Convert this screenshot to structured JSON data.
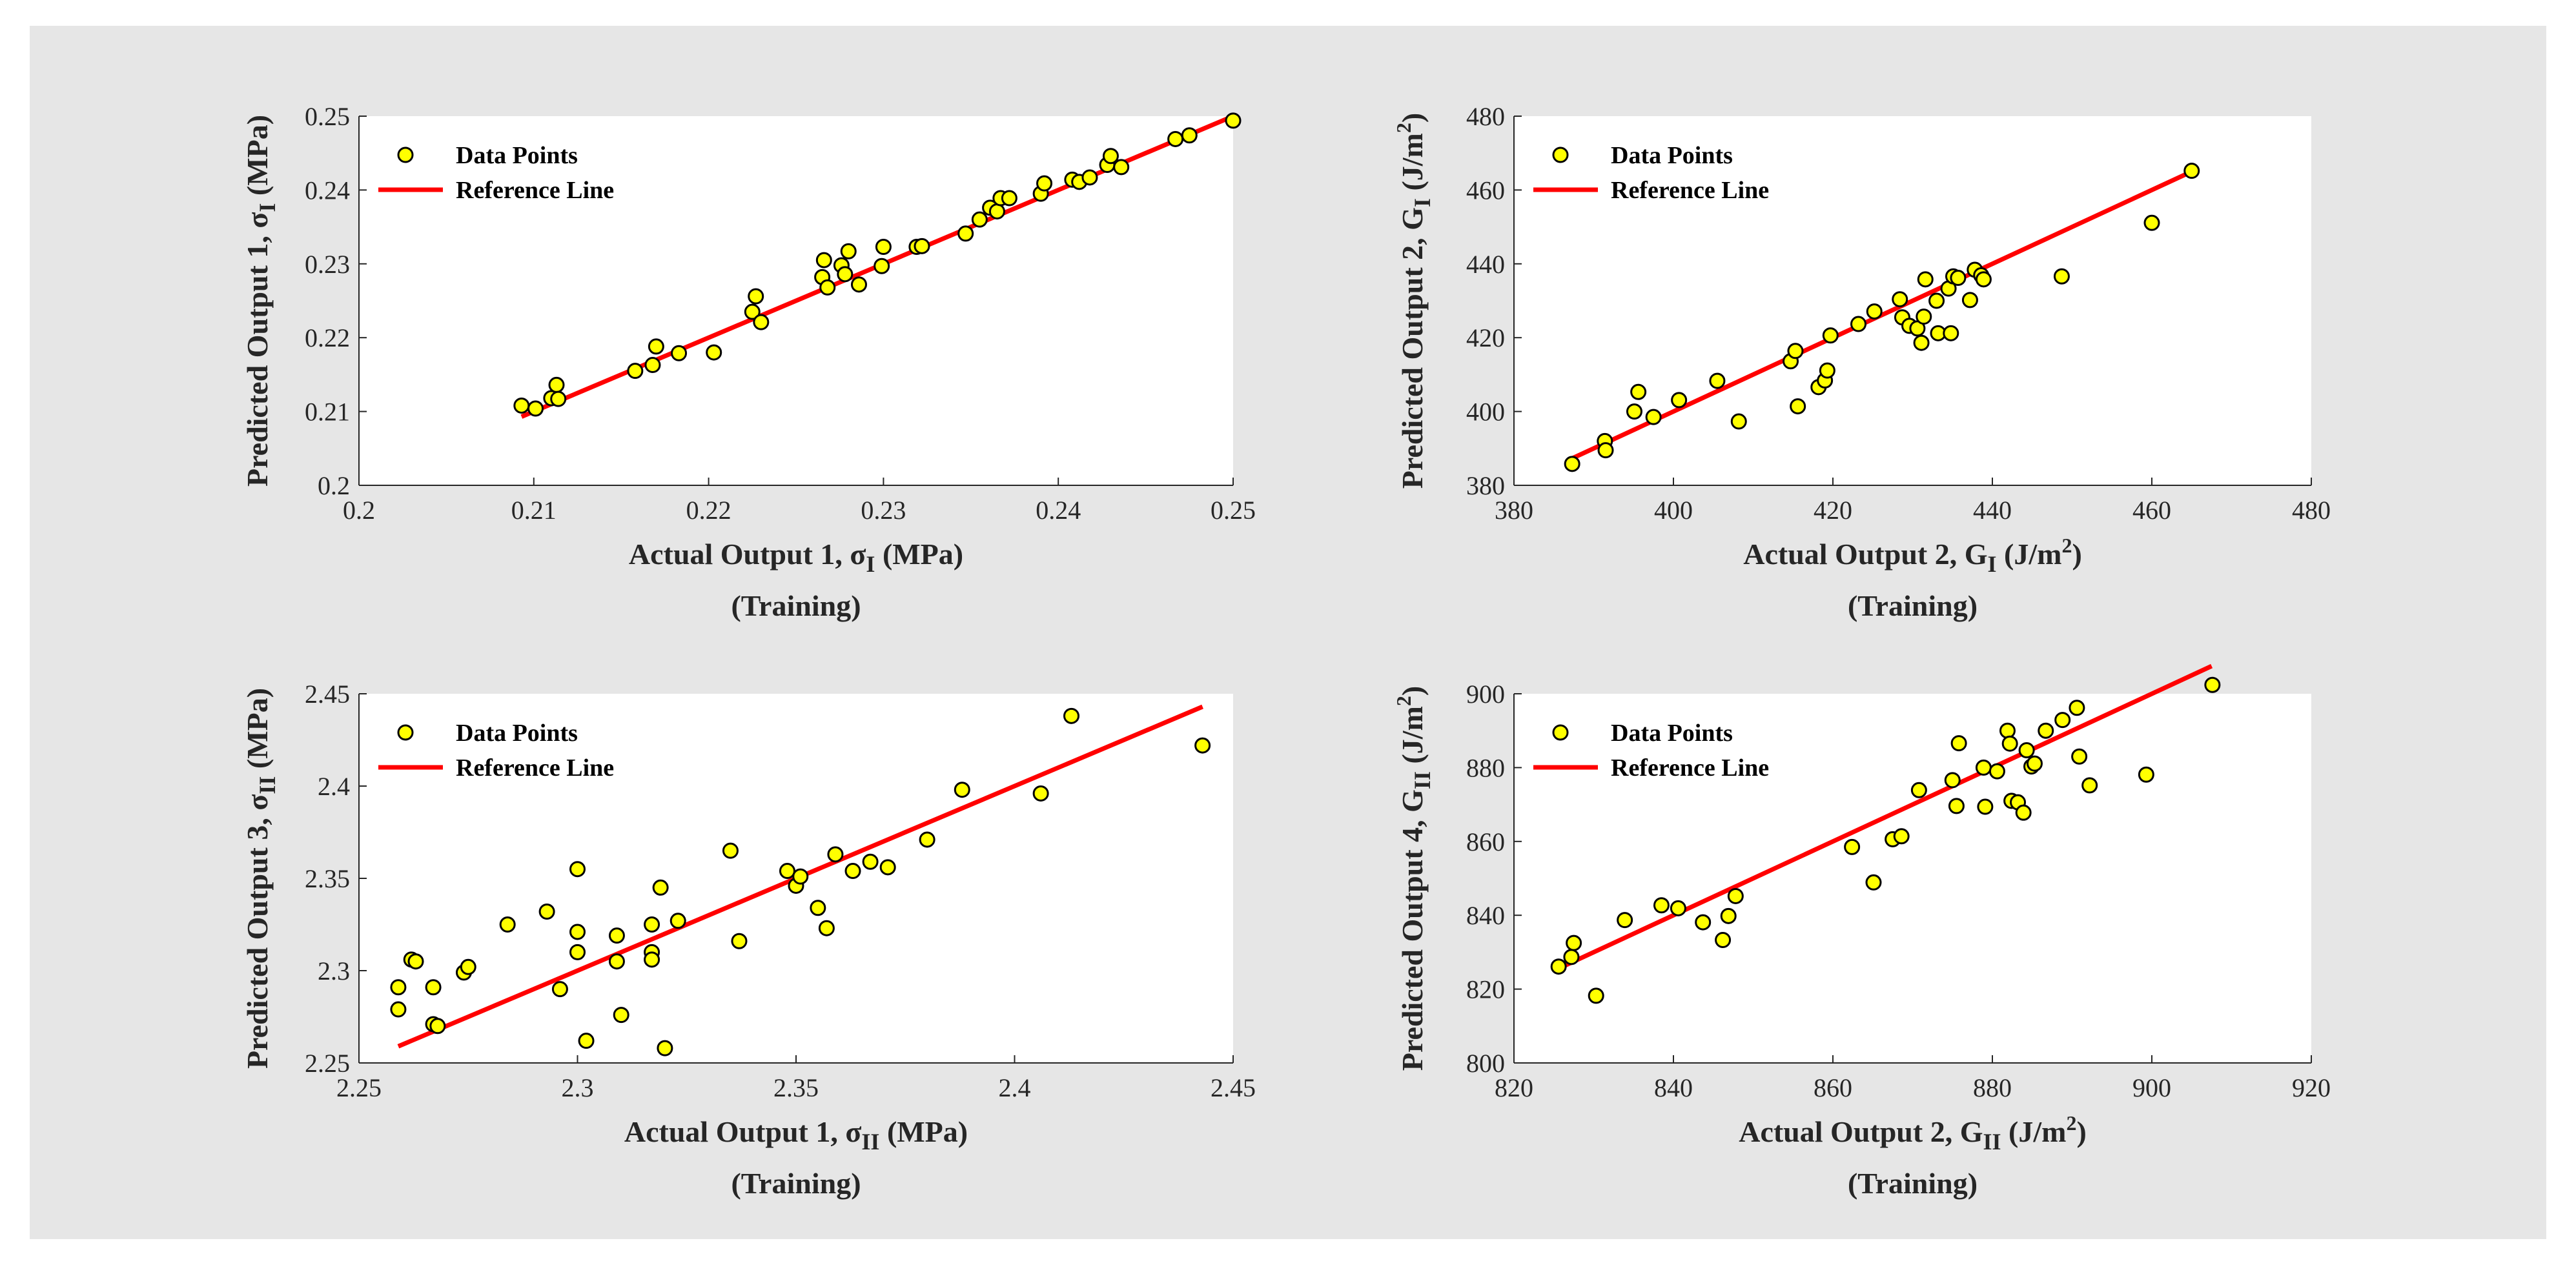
{
  "figure": {
    "background": "#e6e6e6",
    "axes_color": "#ffffff",
    "point_fill": "#ffff00",
    "point_edge": "#000000",
    "line_color": "#ff0000"
  },
  "chart_data": [
    {
      "type": "scatter",
      "xlabel": {
        "main": "Actual Output 1, σ",
        "sub": "I",
        "tail": " (MPa)"
      },
      "ylabel": {
        "main": "Predicted Output 1, σ",
        "sub": "I",
        "tail": " (MPa)"
      },
      "subtitle": "(Training)",
      "xlim": [
        0.2,
        0.25
      ],
      "ylim": [
        0.2,
        0.25
      ],
      "xticks": [
        0.2,
        0.21,
        0.22,
        0.23,
        0.24,
        0.25
      ],
      "yticks": [
        0.2,
        0.21,
        0.22,
        0.23,
        0.24,
        0.25
      ],
      "xtick_labels": [
        "0.2",
        "0.21",
        "0.22",
        "0.23",
        "0.24",
        "0.25"
      ],
      "ytick_labels": [
        "0.2",
        "0.21",
        "0.22",
        "0.23",
        "0.24",
        "0.25"
      ],
      "legend": {
        "location": "top-left",
        "points": "Data Points",
        "line": "Reference Line"
      },
      "reference_line": {
        "x": [
          0.2093,
          0.25
        ],
        "y": [
          0.2093,
          0.25
        ]
      },
      "series": {
        "name": "Data Points",
        "x": [
          0.2093,
          0.2101,
          0.211,
          0.2113,
          0.2114,
          0.2158,
          0.2168,
          0.217,
          0.2183,
          0.2203,
          0.2225,
          0.2227,
          0.223,
          0.2265,
          0.2266,
          0.2268,
          0.2276,
          0.2278,
          0.228,
          0.2286,
          0.2299,
          0.23,
          0.2319,
          0.2322,
          0.2347,
          0.2355,
          0.2361,
          0.2365,
          0.2367,
          0.2372,
          0.239,
          0.2392,
          0.2408,
          0.2412,
          0.2418,
          0.2428,
          0.243,
          0.2436,
          0.2467,
          0.2475,
          0.25
        ],
        "y": [
          0.2108,
          0.2104,
          0.2118,
          0.2136,
          0.2117,
          0.2155,
          0.2163,
          0.2188,
          0.2179,
          0.218,
          0.2235,
          0.2256,
          0.2221,
          0.2282,
          0.2305,
          0.2268,
          0.2298,
          0.2286,
          0.2317,
          0.2272,
          0.2297,
          0.2323,
          0.2323,
          0.2324,
          0.2341,
          0.236,
          0.2376,
          0.2371,
          0.2389,
          0.2389,
          0.2395,
          0.2409,
          0.2414,
          0.2411,
          0.2417,
          0.2434,
          0.2446,
          0.2431,
          0.2469,
          0.2474,
          0.2494
        ]
      }
    },
    {
      "type": "scatter",
      "xlabel": {
        "main": "Actual Output 2, G",
        "sub": "I",
        "tail": " (J/m",
        "sup": "2",
        "end": ")"
      },
      "ylabel": {
        "main": "Predicted Output 2, G",
        "sub": "I",
        "tail": " (J/m",
        "sup": "2",
        "end": ")"
      },
      "subtitle": "(Training)",
      "xlim": [
        380,
        480
      ],
      "ylim": [
        380,
        480
      ],
      "xticks": [
        380,
        400,
        420,
        440,
        460,
        480
      ],
      "yticks": [
        380,
        400,
        420,
        440,
        460,
        480
      ],
      "xtick_labels": [
        "380",
        "400",
        "420",
        "440",
        "460",
        "480"
      ],
      "ytick_labels": [
        "380",
        "400",
        "420",
        "440",
        "460",
        "480"
      ],
      "legend": {
        "location": "top-left",
        "points": "Data Points",
        "line": "Reference Line"
      },
      "reference_line": {
        "x": [
          387,
          465
        ],
        "y": [
          387,
          465
        ]
      },
      "series": {
        "name": "Data Points",
        "x": [
          387.3,
          391.4,
          391.5,
          395.1,
          395.6,
          397.5,
          400.7,
          405.5,
          408.2,
          414.7,
          415.3,
          415.6,
          418.2,
          419.0,
          419.3,
          419.7,
          423.2,
          425.2,
          428.4,
          428.7,
          429.6,
          430.6,
          431.1,
          431.4,
          431.6,
          433.0,
          433.2,
          434.5,
          434.8,
          435.1,
          435.7,
          437.2,
          437.8,
          438.6,
          438.9,
          448.7,
          460.0,
          465.0
        ],
        "y": [
          385.8,
          392.0,
          389.5,
          400.0,
          405.3,
          398.5,
          403.1,
          408.3,
          397.3,
          413.6,
          416.4,
          401.4,
          406.6,
          408.4,
          411.1,
          420.6,
          423.7,
          427.1,
          430.4,
          425.5,
          423.2,
          422.5,
          418.6,
          425.7,
          435.8,
          430.0,
          421.2,
          433.3,
          421.2,
          436.6,
          436.2,
          430.2,
          438.4,
          436.9,
          435.8,
          436.6,
          451.1,
          465.2
        ]
      }
    },
    {
      "type": "scatter",
      "xlabel": {
        "main": "Actual Output 1, σ",
        "sub": "II",
        "tail": " (MPa)"
      },
      "ylabel": {
        "main": "Predicted Output 3, σ",
        "sub": "II",
        "tail": " (MPa)"
      },
      "subtitle": "(Training)",
      "xlim": [
        2.25,
        2.45
      ],
      "ylim": [
        2.25,
        2.45
      ],
      "xticks": [
        2.25,
        2.3,
        2.35,
        2.4,
        2.45
      ],
      "yticks": [
        2.25,
        2.3,
        2.35,
        2.4,
        2.45
      ],
      "xtick_labels": [
        "2.25",
        "2.3",
        "2.35",
        "2.4",
        "2.45"
      ],
      "ytick_labels": [
        "2.25",
        "2.3",
        "2.35",
        "2.4",
        "2.45"
      ],
      "legend": {
        "location": "top-left",
        "points": "Data Points",
        "line": "Reference Line"
      },
      "reference_line": {
        "x": [
          2.259,
          2.443
        ],
        "y": [
          2.259,
          2.443
        ]
      },
      "series": {
        "name": "Data Points",
        "x": [
          2.259,
          2.259,
          2.262,
          2.263,
          2.267,
          2.267,
          2.268,
          2.274,
          2.275,
          2.284,
          2.293,
          2.296,
          2.3,
          2.3,
          2.3,
          2.302,
          2.309,
          2.309,
          2.31,
          2.317,
          2.317,
          2.317,
          2.319,
          2.32,
          2.323,
          2.335,
          2.337,
          2.348,
          2.35,
          2.351,
          2.355,
          2.357,
          2.359,
          2.363,
          2.367,
          2.371,
          2.38,
          2.388,
          2.406,
          2.413,
          2.443
        ],
        "y": [
          2.279,
          2.291,
          2.306,
          2.305,
          2.271,
          2.291,
          2.27,
          2.299,
          2.302,
          2.325,
          2.332,
          2.29,
          2.31,
          2.321,
          2.355,
          2.262,
          2.319,
          2.305,
          2.276,
          2.325,
          2.31,
          2.306,
          2.345,
          2.258,
          2.327,
          2.365,
          2.316,
          2.354,
          2.346,
          2.351,
          2.334,
          2.323,
          2.363,
          2.354,
          2.359,
          2.356,
          2.371,
          2.398,
          2.396,
          2.438,
          2.422
        ]
      }
    },
    {
      "type": "scatter",
      "xlabel": {
        "main": "Actual Output 2, G",
        "sub": "II",
        "tail": " (J/m",
        "sup": "2",
        "end": ")"
      },
      "ylabel": {
        "main": "Predicted Output 4, G",
        "sub": "II",
        "tail": " (J/m",
        "sup": "2",
        "end": ")"
      },
      "subtitle": "(Training)",
      "xlim": [
        820,
        920
      ],
      "ylim": [
        800,
        900
      ],
      "xticks": [
        820,
        840,
        860,
        880,
        900,
        920
      ],
      "yticks": [
        800,
        820,
        840,
        860,
        880,
        900
      ],
      "xtick_labels": [
        "820",
        "840",
        "860",
        "880",
        "900",
        "920"
      ],
      "ytick_labels": [
        "800",
        "820",
        "840",
        "860",
        "880",
        "900"
      ],
      "legend": {
        "location": "top-left",
        "points": "Data Points",
        "line": "Reference Line"
      },
      "reference_line": {
        "x": [
          825.5,
          907.5
        ],
        "y": [
          825.5,
          907.5
        ]
      },
      "series": {
        "name": "Data Points",
        "x": [
          825.6,
          827.2,
          827.5,
          830.3,
          833.9,
          838.5,
          840.6,
          843.7,
          846.2,
          846.9,
          847.8,
          862.4,
          865.1,
          867.5,
          868.6,
          870.8,
          875.0,
          875.5,
          875.8,
          878.9,
          879.1,
          880.6,
          881.9,
          882.2,
          882.4,
          883.2,
          883.9,
          884.3,
          884.9,
          885.3,
          886.7,
          888.8,
          890.6,
          890.9,
          892.2,
          899.3,
          907.6
        ],
        "y": [
          826.1,
          828.7,
          832.5,
          818.2,
          838.7,
          842.7,
          841.9,
          838.1,
          833.3,
          839.8,
          845.2,
          858.5,
          848.9,
          860.6,
          861.4,
          873.9,
          876.6,
          869.6,
          886.6,
          880.0,
          869.4,
          879.0,
          890.0,
          886.5,
          871.0,
          870.6,
          867.8,
          884.7,
          880.3,
          881.1,
          890.0,
          892.9,
          896.2,
          883.0,
          875.2,
          878.1,
          902.4
        ]
      }
    }
  ]
}
